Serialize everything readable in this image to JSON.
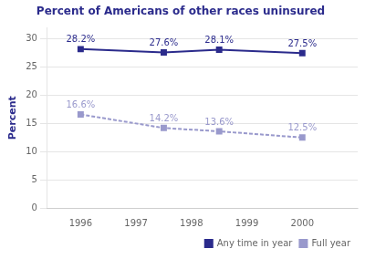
{
  "chart_data": {
    "type": "line",
    "title": "Percent of Americans of other races uninsured",
    "ylabel": "Percent",
    "x": [
      1996,
      1997.5,
      1998.5,
      2000
    ],
    "series": [
      {
        "name": "Any time in year",
        "color": "#2b2b8c",
        "values": [
          28.2,
          27.6,
          28.1,
          27.5
        ],
        "value_labels": [
          "28.2%",
          "27.6%",
          "28.1%",
          "27.5%"
        ],
        "marker": "square",
        "line_style": "solid"
      },
      {
        "name": "Full year",
        "color": "#9999cc",
        "values": [
          16.6,
          14.2,
          13.6,
          12.5
        ],
        "value_labels": [
          "16.6%",
          "14.2%",
          "13.6%",
          "12.5%"
        ],
        "marker": "square",
        "line_style": "dashed"
      }
    ],
    "xlim": [
      1995.4,
      2001
    ],
    "xticks": [
      1996,
      1997,
      1998,
      1999,
      2000
    ],
    "ylim": [
      0,
      32
    ],
    "yticks": [
      0,
      5,
      10,
      15,
      20,
      25,
      30
    ],
    "grid": true,
    "legend": "lower right",
    "data_labels": true
  }
}
